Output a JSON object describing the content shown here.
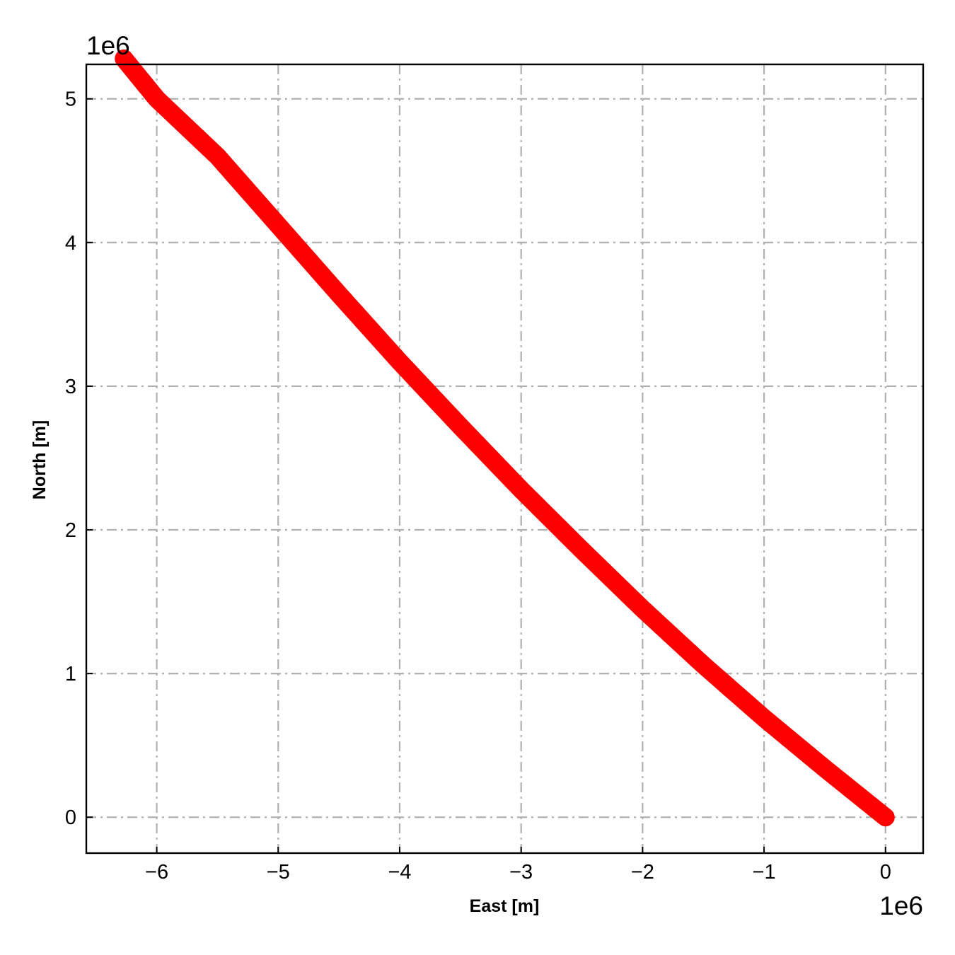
{
  "chart_data": {
    "type": "scatter",
    "xlabel": "East [m]",
    "ylabel": "North [m]",
    "x_offset_label": "1e6",
    "y_offset_label": "1e6",
    "x_scale": 1000000,
    "y_scale": 1000000,
    "xlim": [
      -6.58,
      0.31
    ],
    "ylim": [
      -0.25,
      5.24
    ],
    "x_ticks": [
      -6,
      -5,
      -4,
      -3,
      -2,
      -1,
      0
    ],
    "x_tick_labels": [
      "−6",
      "−5",
      "−4",
      "−3",
      "−2",
      "−1",
      "0"
    ],
    "y_ticks": [
      0,
      1,
      2,
      3,
      4,
      5
    ],
    "y_tick_labels": [
      "0",
      "1",
      "2",
      "3",
      "4",
      "5"
    ],
    "grid": true,
    "grid_style": "dash-dot",
    "marker_color": "#ff0000",
    "series": [
      {
        "x": [
          0.0,
          -0.5,
          -1.0,
          -1.5,
          -2.0,
          -2.5,
          -3.0,
          -3.5,
          -4.0,
          -4.5,
          -5.0,
          -5.5,
          -6.0,
          -6.27
        ],
        "y": [
          0.0,
          0.34,
          0.69,
          1.06,
          1.45,
          1.86,
          2.28,
          2.72,
          3.17,
          3.64,
          4.12,
          4.6,
          5.0,
          5.28
        ]
      }
    ]
  }
}
